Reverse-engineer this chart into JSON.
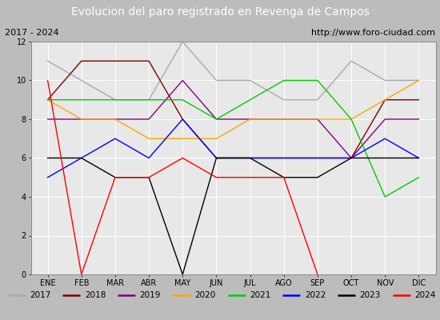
{
  "title": "Evolucion del paro registrado en Revenga de Campos",
  "subtitle_left": "2017 - 2024",
  "subtitle_right": "http://www.foro-ciudad.com",
  "months": [
    "ENE",
    "FEB",
    "MAR",
    "ABR",
    "MAY",
    "JUN",
    "JUL",
    "AGO",
    "SEP",
    "OCT",
    "NOV",
    "DIC"
  ],
  "series": {
    "2017": {
      "color": "#aaaaaa",
      "values": [
        11,
        10,
        9,
        9,
        12,
        10,
        10,
        9,
        9,
        11,
        10,
        10
      ]
    },
    "2018": {
      "color": "#800000",
      "values": [
        9,
        11,
        11,
        11,
        8,
        6,
        6,
        6,
        6,
        6,
        9,
        9
      ]
    },
    "2019": {
      "color": "#800080",
      "values": [
        8,
        8,
        8,
        8,
        10,
        8,
        8,
        8,
        8,
        6,
        8,
        8
      ]
    },
    "2020": {
      "color": "#ffa500",
      "values": [
        9,
        8,
        8,
        7,
        7,
        7,
        8,
        8,
        8,
        8,
        9,
        10
      ]
    },
    "2021": {
      "color": "#00cc00",
      "values": [
        9,
        9,
        9,
        9,
        9,
        8,
        9,
        10,
        10,
        8,
        4,
        5
      ]
    },
    "2022": {
      "color": "#0000ff",
      "values": [
        5,
        6,
        7,
        6,
        8,
        6,
        6,
        6,
        6,
        6,
        7,
        6
      ]
    },
    "2023": {
      "color": "#000000",
      "values": [
        6,
        6,
        5,
        5,
        0,
        6,
        6,
        5,
        5,
        6,
        6,
        6
      ]
    },
    "2024": {
      "color": "#ff0000",
      "values": [
        10,
        0,
        5,
        5,
        6,
        5,
        5,
        5,
        0,
        null,
        null,
        null
      ]
    }
  },
  "ylim": [
    0,
    12
  ],
  "yticks": [
    0,
    2,
    4,
    6,
    8,
    10,
    12
  ],
  "title_bg_color": "#4472c4",
  "title_text_color": "#ffffff",
  "subtitle_bg_color": "#d4d4d4",
  "plot_bg_color": "#e8e8e8",
  "outer_bg_color": "#bcbcbc",
  "legend_bg_color": "#e0e0e0"
}
